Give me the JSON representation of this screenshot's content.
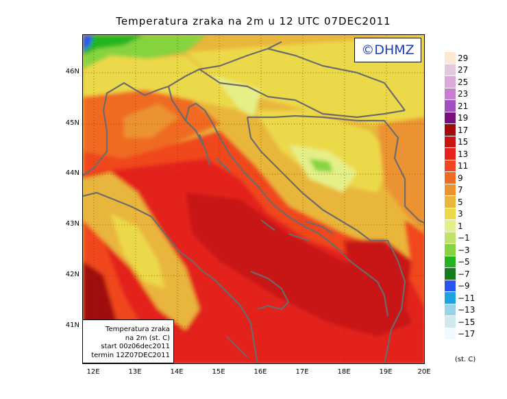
{
  "title": "Temperatura zraka na 2m u 12 UTC 07DEC2011",
  "logo_text": "©DHMZ",
  "info_box": {
    "line1": "Temperatura zraka",
    "line2": "na 2m (st. C)",
    "line3": "start 00z06dec2011",
    "line4": "termin 12Z07DEC2011"
  },
  "map_axes": {
    "lat_labels": [
      "46N",
      "45N",
      "44N",
      "43N",
      "42N",
      "41N"
    ],
    "lon_labels": [
      "12E",
      "13E",
      "14E",
      "15E",
      "16E",
      "17E",
      "18E",
      "19E",
      "20E"
    ]
  },
  "legend": {
    "unit": "(st. C)",
    "labels": [
      "29",
      "27",
      "25",
      "23",
      "21",
      "19",
      "17",
      "15",
      "13",
      "11",
      "9",
      "7",
      "5",
      "3",
      "1",
      "−1",
      "−3",
      "−5",
      "−7",
      "−9",
      "−11",
      "−13",
      "−15",
      "−17"
    ],
    "colors": [
      "#fbe9d6",
      "#e6c7e0",
      "#dba8d8",
      "#c97ed0",
      "#a24fc2",
      "#7b0f7d",
      "#a00c0c",
      "#c81414",
      "#e3231c",
      "#f0461f",
      "#f06a24",
      "#eb9331",
      "#e9b63c",
      "#ecd94a",
      "#e5ef88",
      "#bfe36a",
      "#86d33f",
      "#22b520",
      "#137d20",
      "#2a54f0",
      "#20a2e0",
      "#9bd3e6",
      "#cfe9f3",
      "#f1fafd"
    ]
  }
}
